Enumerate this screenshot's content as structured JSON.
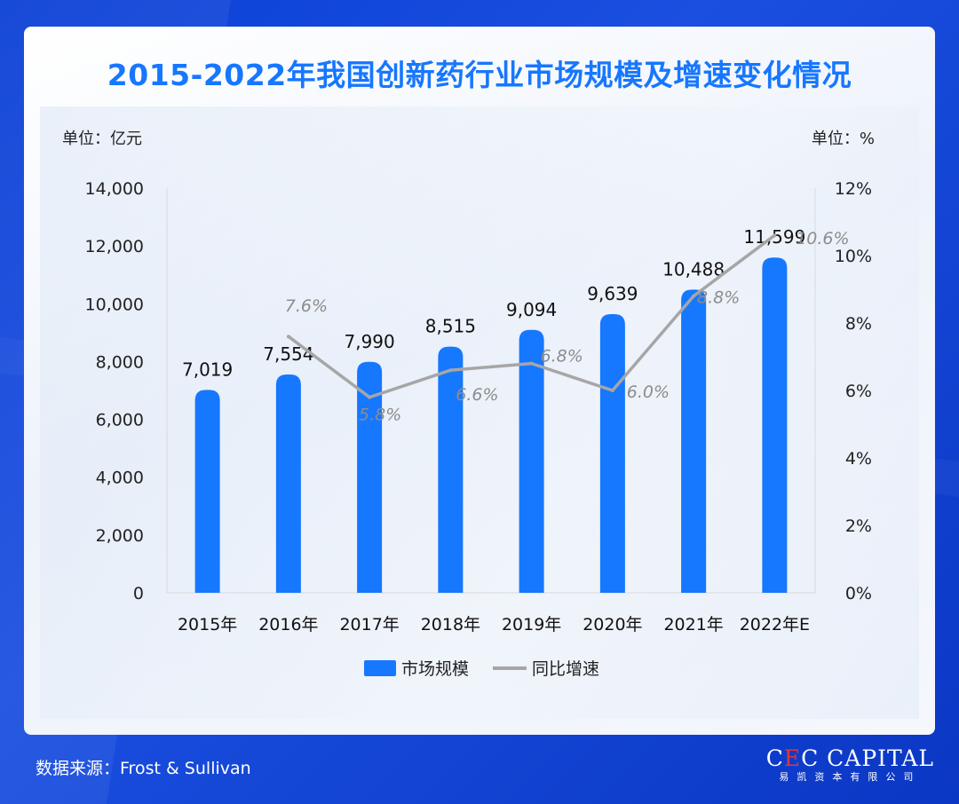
{
  "title": "2015-2022年我国创新药行业市场规模及增速变化情况",
  "colors": {
    "bar": "#1677ff",
    "line": "#a6a6a6",
    "title": "#1677ff",
    "label": "#8c8c8c"
  },
  "chart_data": {
    "type": "bar",
    "categories": [
      "2015年",
      "2016年",
      "2017年",
      "2018年",
      "2019年",
      "2020年",
      "2021年",
      "2022年E"
    ],
    "series": [
      {
        "name": "市场规模",
        "type": "bar",
        "axis": "left",
        "values": [
          7019,
          7554,
          7990,
          8515,
          9094,
          9639,
          10488,
          11599
        ],
        "labels": [
          "7,019",
          "7,554",
          "7,990",
          "8,515",
          "9,094",
          "9,639",
          "10,488",
          "11,599"
        ]
      },
      {
        "name": "同比增速",
        "type": "line",
        "axis": "right",
        "values": [
          null,
          7.6,
          5.8,
          6.6,
          6.8,
          6.0,
          8.8,
          10.6
        ],
        "labels": [
          "",
          "7.6%",
          "5.8%",
          "6.6%",
          "6.8%",
          "6.0%",
          "8.8%",
          "10.6%"
        ]
      }
    ],
    "left_axis": {
      "unit_label": "单位：亿元",
      "ylim": [
        0,
        14000
      ],
      "ticks": [
        "0",
        "2,000",
        "4,000",
        "6,000",
        "8,000",
        "10,000",
        "12,000",
        "14,000"
      ]
    },
    "right_axis": {
      "unit_label": "单位：%",
      "ylim": [
        0,
        12
      ],
      "ticks": [
        "0%",
        "2%",
        "4%",
        "6%",
        "8%",
        "10%",
        "12%"
      ]
    },
    "legend": {
      "position": "bottom",
      "items": [
        "市场规模",
        "同比增速"
      ]
    }
  },
  "footer": {
    "source": "数据来源：Frost & Sullivan"
  },
  "logo": {
    "main_before": "C",
    "main_accent": "E",
    "main_after": "C CAPITAL",
    "sub": "易凯资本有限公司"
  }
}
